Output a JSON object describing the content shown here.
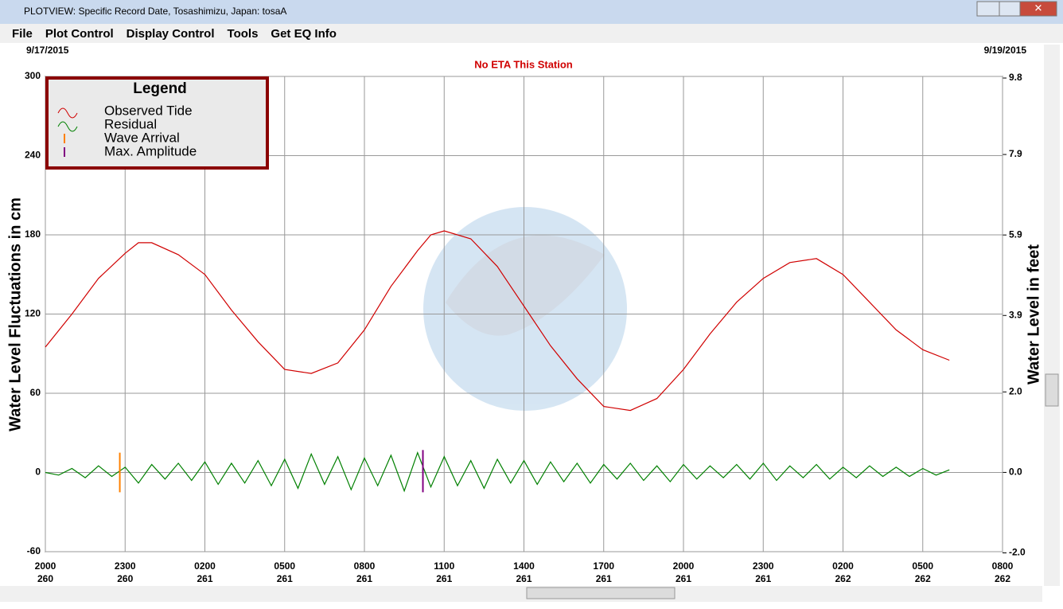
{
  "window": {
    "title": "PLOTVIEW: Specific Record Date, Tosashimizu, Japan: tosaA"
  },
  "menu": [
    "File",
    "Plot Control",
    "Display Control",
    "Tools",
    "Get EQ Info"
  ],
  "chart_data": {
    "type": "line",
    "start_date": "9/17/2015",
    "end_date": "9/19/2015",
    "subtitle": "No ETA This Station",
    "y_label": "Water Level Fluctuations in cm",
    "y2_label": "Water Level in feet",
    "legend_title": "Legend",
    "legend": "top-left",
    "grid": true,
    "xlim": [
      0,
      36
    ],
    "xticks": [
      {
        "value": 0,
        "label": "2000"
      },
      {
        "value": 3,
        "label": "2300"
      },
      {
        "value": 6,
        "label": "0200"
      },
      {
        "value": 9,
        "label": "0500"
      },
      {
        "value": 12,
        "label": "0800"
      },
      {
        "value": 15,
        "label": "1100"
      },
      {
        "value": 18,
        "label": "1400"
      },
      {
        "value": 21,
        "label": "1700"
      },
      {
        "value": 24,
        "label": "2000"
      },
      {
        "value": 27,
        "label": "2300"
      },
      {
        "value": 30,
        "label": "0200"
      },
      {
        "value": 33,
        "label": "0500"
      },
      {
        "value": 36,
        "label": "0800"
      }
    ],
    "xticks_day": [
      {
        "value": 0,
        "label": "260"
      },
      {
        "value": 3,
        "label": "260"
      },
      {
        "value": 6,
        "label": "261"
      },
      {
        "value": 9,
        "label": "261"
      },
      {
        "value": 12,
        "label": "261"
      },
      {
        "value": 15,
        "label": "261"
      },
      {
        "value": 18,
        "label": "261"
      },
      {
        "value": 21,
        "label": "261"
      },
      {
        "value": 24,
        "label": "261"
      },
      {
        "value": 27,
        "label": "261"
      },
      {
        "value": 30,
        "label": "262"
      },
      {
        "value": 33,
        "label": "262"
      },
      {
        "value": 36,
        "label": "262"
      }
    ],
    "ylim": [
      -60,
      300
    ],
    "yticks": [
      -60,
      0,
      60,
      120,
      180,
      240,
      300
    ],
    "y2lim": [
      -1.97,
      9.84
    ],
    "y2ticks": [
      {
        "value": -2,
        "label": "-2.0"
      },
      {
        "value": 0,
        "label": "0.0"
      },
      {
        "value": 2,
        "label": "2.0"
      },
      3.9,
      5.9,
      7.9,
      9.8
    ],
    "series": [
      {
        "name": "Observed Tide",
        "color": "#d00000",
        "x": [
          0,
          1,
          2,
          3,
          3.5,
          4,
          5,
          6,
          7,
          8,
          9,
          10,
          11,
          12,
          13,
          14,
          14.5,
          15,
          16,
          17,
          18,
          19,
          20,
          21,
          22,
          23,
          24,
          25,
          26,
          27,
          28,
          29,
          30,
          31,
          32,
          33,
          34
        ],
        "values": [
          95,
          120,
          147,
          166,
          174,
          174,
          165,
          150,
          123,
          99,
          78,
          75,
          83,
          108,
          141,
          168,
          180,
          183,
          177,
          156,
          126,
          96,
          71,
          50,
          47,
          56,
          78,
          105,
          129,
          147,
          159,
          162,
          150,
          129,
          108,
          93,
          85
        ]
      },
      {
        "name": "Residual",
        "color": "#008000",
        "x": [
          0,
          0.5,
          1,
          1.5,
          2,
          2.5,
          3,
          3.5,
          4,
          4.5,
          5,
          5.5,
          6,
          6.5,
          7,
          7.5,
          8,
          8.5,
          9,
          9.5,
          10,
          10.5,
          11,
          11.5,
          12,
          12.5,
          13,
          13.5,
          14,
          14.5,
          15,
          15.5,
          16,
          16.5,
          17,
          17.5,
          18,
          18.5,
          19,
          19.5,
          20,
          20.5,
          21,
          21.5,
          22,
          22.5,
          23,
          23.5,
          24,
          24.5,
          25,
          25.5,
          26,
          26.5,
          27,
          27.5,
          28,
          28.5,
          29,
          29.5,
          30,
          30.5,
          31,
          31.5,
          32,
          32.5,
          33,
          33.5,
          34
        ],
        "values": [
          0,
          -2,
          3,
          -4,
          5,
          -3,
          4,
          -8,
          6,
          -5,
          7,
          -6,
          8,
          -9,
          7,
          -8,
          9,
          -10,
          10,
          -12,
          14,
          -9,
          12,
          -13,
          11,
          -10,
          13,
          -14,
          15,
          -11,
          12,
          -10,
          9,
          -12,
          10,
          -8,
          9,
          -9,
          8,
          -7,
          7,
          -8,
          6,
          -5,
          7,
          -6,
          5,
          -7,
          6,
          -5,
          5,
          -4,
          6,
          -5,
          7,
          -6,
          5,
          -4,
          6,
          -5,
          4,
          -4,
          5,
          -3,
          4,
          -3,
          3,
          -2,
          2
        ]
      }
    ],
    "markers": [
      {
        "name": "Wave Arrival",
        "color": "#ff8000",
        "x": 2.8,
        "range": [
          -15,
          15
        ]
      },
      {
        "name": "Max. Amplitude",
        "color": "#800080",
        "x": 14.2,
        "range": [
          -15,
          17
        ]
      }
    ]
  }
}
